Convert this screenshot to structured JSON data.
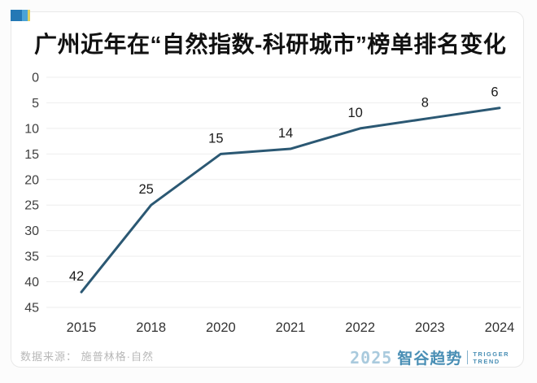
{
  "header": {
    "icon": "brand-flag-icon"
  },
  "chart_data": {
    "type": "line",
    "title": "广州近年在“自然指数-科研城市”榜单排名变化",
    "categories": [
      "2015",
      "2018",
      "2020",
      "2021",
      "2022",
      "2023",
      "2024"
    ],
    "values": [
      42,
      25,
      15,
      14,
      10,
      8,
      6
    ],
    "data_labels": [
      "42",
      "25",
      "15",
      "14",
      "10",
      "8",
      "6"
    ],
    "xlabel": "",
    "ylabel": "",
    "y_ticks": [
      0,
      5,
      10,
      15,
      20,
      25,
      30,
      35,
      40,
      45
    ],
    "ylim": [
      0,
      45
    ],
    "y_axis_inverted": true,
    "grid": "horizontal",
    "legend": "none",
    "line_color": "#2b5873",
    "gridline_color": "#eeeeee",
    "tick_label_color": "#3f3f3f",
    "data_label_color": "#1a1a1a"
  },
  "footer": {
    "source_label": "数据来源： 施普林格·自然",
    "logo": {
      "year": "2025",
      "brand": "智谷趋势",
      "tagline_line1": "TRIGGER",
      "tagline_line2": "TREND"
    }
  }
}
